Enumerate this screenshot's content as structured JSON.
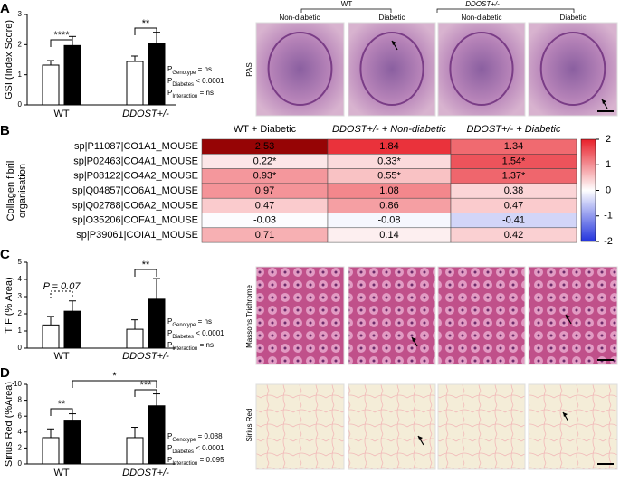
{
  "chart_data": [
    {
      "type": "bar",
      "panel": "A",
      "ylabel": "GSI (Index Score)",
      "categories": [
        "WT",
        "DDOST+/-"
      ],
      "series": [
        {
          "color": "#ffffff",
          "values": [
            1.32,
            1.44
          ],
          "errors": [
            0.15,
            0.18
          ]
        },
        {
          "color": "#000000",
          "values": [
            1.97,
            2.03
          ],
          "errors": [
            0.3,
            0.38
          ]
        }
      ],
      "ylim": [
        0,
        3
      ],
      "yticks": [
        0,
        1,
        2,
        3
      ],
      "annotations": [
        "****",
        "**"
      ],
      "stats": [
        [
          "P",
          "Genotype",
          " = ns"
        ],
        [
          "P",
          "Diabetes",
          " < 0.0001"
        ],
        [
          "P",
          "Interaction",
          " = ns"
        ]
      ]
    },
    {
      "type": "heatmap",
      "panel": "B",
      "ylabel": [
        "Collagen fibril",
        "organisation"
      ],
      "columns": [
        "WT + Diabetic",
        "DDOST+/- + Non-diabetic",
        "DDOST+/- + Diabetic"
      ],
      "rows": [
        "sp|P11087|CO1A1_MOUSE",
        "sp|P02463|CO4A1_MOUSE",
        "sp|P08122|CO4A2_MOUSE",
        "sp|Q04857|CO6A1_MOUSE",
        "sp|Q02788|CO6A2_MOUSE",
        "sp|O35206|COFA1_MOUSE",
        "sp|P39061|COIA1_MOUSE"
      ],
      "values": [
        [
          2.53,
          1.84,
          1.34
        ],
        [
          0.22,
          0.33,
          1.54
        ],
        [
          0.93,
          0.55,
          1.37
        ],
        [
          0.97,
          1.08,
          0.38
        ],
        [
          0.47,
          0.86,
          0.47
        ],
        [
          -0.03,
          -0.08,
          -0.41
        ],
        [
          0.71,
          0.14,
          0.42
        ]
      ],
      "value_labels": [
        [
          "2.53",
          "1.84",
          "1.34"
        ],
        [
          "0.22*",
          "0.33*",
          "1.54*"
        ],
        [
          "0.93*",
          "0.55*",
          "1.37*"
        ],
        [
          "0.97",
          "1.08",
          "0.38"
        ],
        [
          "0.47",
          "0.86",
          "0.47"
        ],
        [
          "-0.03",
          "-0.08",
          "-0.41"
        ],
        [
          "0.71",
          "0.14",
          "0.42"
        ]
      ],
      "clim": [
        -2,
        2
      ],
      "cticks": [
        2,
        1,
        0,
        -1,
        -2
      ]
    },
    {
      "type": "bar",
      "panel": "C",
      "ylabel": "TIF (% Area)",
      "categories": [
        "WT",
        "DDOST+/-"
      ],
      "series": [
        {
          "color": "#ffffff",
          "values": [
            1.35,
            1.1
          ],
          "errors": [
            0.5,
            0.55
          ]
        },
        {
          "color": "#000000",
          "values": [
            2.15,
            2.85
          ],
          "errors": [
            0.6,
            1.2
          ]
        }
      ],
      "ylim": [
        0,
        5
      ],
      "yticks": [
        0,
        1,
        2,
        3,
        4,
        5
      ],
      "annotations": [
        "P = 0.07",
        "**"
      ],
      "stats": [
        [
          "P",
          "Genotype",
          " = ns"
        ],
        [
          "P",
          "Diabetes",
          " < 0.0001"
        ],
        [
          "P",
          "Interaction",
          " = ns"
        ]
      ]
    },
    {
      "type": "bar",
      "panel": "D",
      "ylabel": "Sirius Red (%Area)",
      "categories": [
        "WT",
        "DDOST+/-"
      ],
      "series": [
        {
          "color": "#ffffff",
          "values": [
            3.3,
            3.3
          ],
          "errors": [
            1.1,
            1.3
          ]
        },
        {
          "color": "#000000",
          "values": [
            5.5,
            7.3
          ],
          "errors": [
            0.8,
            1.5
          ]
        }
      ],
      "ylim": [
        0,
        10
      ],
      "yticks": [
        0,
        2,
        4,
        6,
        8,
        10
      ],
      "annotations": [
        "**",
        "***",
        "*"
      ],
      "stats": [
        [
          "P",
          "Genotype",
          " = 0.088"
        ],
        [
          "P",
          "Diabetes",
          " < 0.0001"
        ],
        [
          "P",
          "Interaction",
          " = 0.095"
        ]
      ]
    }
  ],
  "micrographs": {
    "genotype_headers": [
      "WT",
      "DDOST+/-"
    ],
    "condition_headers": [
      "Non-diabetic",
      "Diabetic",
      "Non-diabetic",
      "Diabetic"
    ],
    "stains": [
      "PAS",
      "Massons Trichrome",
      "Sirius Red"
    ]
  }
}
